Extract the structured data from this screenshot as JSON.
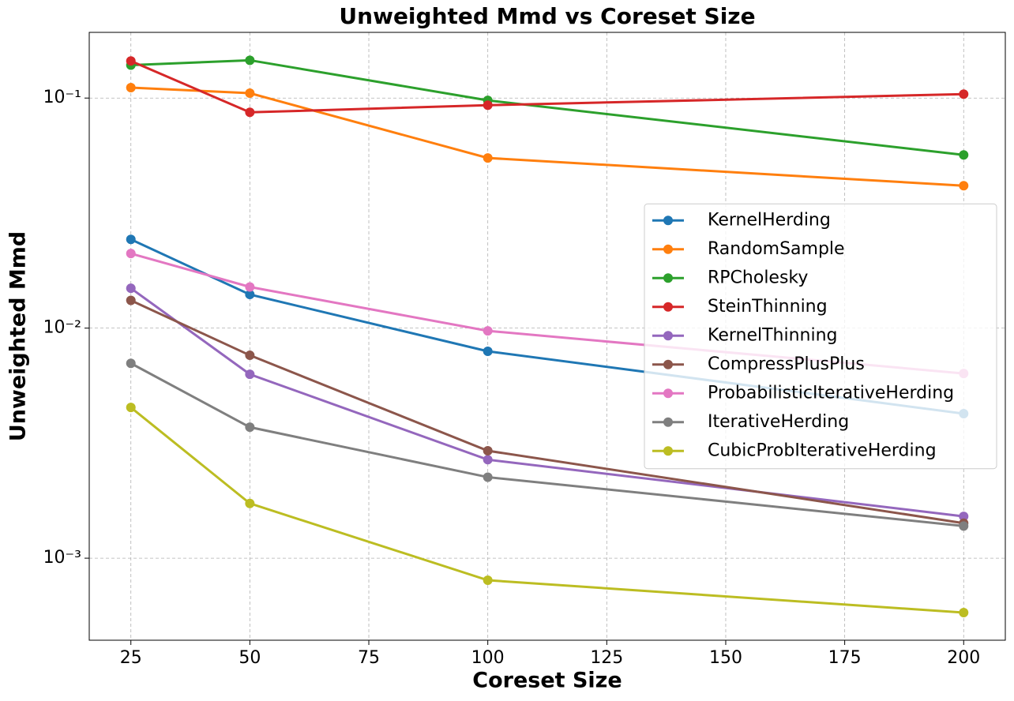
{
  "chart_data": {
    "type": "line",
    "title": "Unweighted Mmd vs Coreset Size",
    "x_label": "Coreset Size",
    "y_label": "Unweighted Mmd",
    "x": [
      25,
      50,
      100,
      200
    ],
    "xlim": [
      16.25,
      208.75
    ],
    "xticks": [
      25,
      50,
      75,
      100,
      125,
      150,
      175,
      200
    ],
    "yscale": "log",
    "ylim": [
      0.00044,
      0.193
    ],
    "yticks": [
      {
        "value": 0.001,
        "label": "10⁻³"
      },
      {
        "value": 0.01,
        "label": "10⁻²"
      },
      {
        "value": 0.1,
        "label": "10⁻¹"
      }
    ],
    "grid": true,
    "legend": "center right",
    "series": [
      {
        "name": "KernelHerding",
        "color": "#1f77b4",
        "values": [
          0.0243,
          0.014,
          0.00793,
          0.00425
        ]
      },
      {
        "name": "RandomSample",
        "color": "#ff7f0e",
        "values": [
          0.111,
          0.105,
          0.0549,
          0.0416
        ]
      },
      {
        "name": "RPCholesky",
        "color": "#2ca02c",
        "values": [
          0.139,
          0.146,
          0.0977,
          0.0566
        ]
      },
      {
        "name": "SteinThinning",
        "color": "#d62728",
        "values": [
          0.145,
          0.0867,
          0.0931,
          0.104
        ]
      },
      {
        "name": "KernelThinning",
        "color": "#9467bd",
        "values": [
          0.0149,
          0.0063,
          0.00268,
          0.00152
        ]
      },
      {
        "name": "CompressPlusPlus",
        "color": "#8c564b",
        "values": [
          0.0132,
          0.00762,
          0.00293,
          0.00142
        ]
      },
      {
        "name": "ProbabilisticIterativeHerding",
        "color": "#e377c2",
        "values": [
          0.0211,
          0.0151,
          0.00973,
          0.00635
        ]
      },
      {
        "name": "IterativeHerding",
        "color": "#7f7f7f",
        "values": [
          0.00703,
          0.00371,
          0.00225,
          0.00138
        ]
      },
      {
        "name": "CubicProbIterativeHerding",
        "color": "#bcbd22",
        "values": [
          0.00452,
          0.00173,
          0.000802,
          0.00058
        ]
      }
    ]
  }
}
